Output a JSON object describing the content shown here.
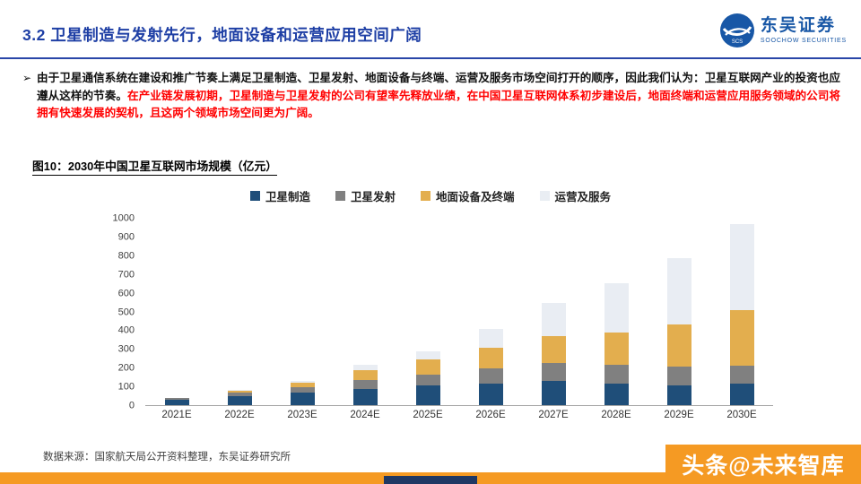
{
  "header": {
    "section_title": "3.2 卫星制造与发射先行，地面设备和运营应用空间广阔",
    "logo": {
      "name_cn": "东吴证券",
      "name_en": "SOOCHOW SECURITIES"
    }
  },
  "body": {
    "bullet": "➢",
    "text_black": "由于卫星通信系统在建设和推广节奏上满足卫星制造、卫星发射、地面设备与终端、运营及服务市场空间打开的顺序，因此我们认为：卫星互联网产业的投资也应遵从这样的节奏。",
    "text_red": "在产业链发展初期，卫星制造与卫星发射的公司有望率先释放业绩，在中国卫星互联网体系初步建设后，地面终端和运营应用服务领域的公司将拥有快速发展的契机，且这两个领域市场空间更为广阔。"
  },
  "figure": {
    "title": "图10：2030年中国卫星互联网市场规模（亿元）",
    "source": "数据来源：国家航天局公开资料整理，东吴证券研究所"
  },
  "watermark": "头条@未来智库",
  "colors": {
    "brand_blue": "#1E3FA5",
    "logo_blue": "#1857A6",
    "highlight_red": "#FF0000",
    "bottom_orange": "#F59A23",
    "bottom_navy": "#1F3864"
  },
  "chart_data": {
    "type": "bar",
    "stacked": true,
    "title": "2030年中国卫星互联网市场规模（亿元）",
    "xlabel": "",
    "ylabel": "",
    "categories": [
      "2021E",
      "2022E",
      "2023E",
      "2024E",
      "2025E",
      "2026E",
      "2027E",
      "2028E",
      "2029E",
      "2030E"
    ],
    "series": [
      {
        "name": "卫星制造",
        "color": "#1F4E79",
        "values": [
          30,
          48,
          65,
          85,
          105,
          115,
          130,
          115,
          105,
          115
        ]
      },
      {
        "name": "卫星发射",
        "color": "#808080",
        "values": [
          8,
          20,
          30,
          50,
          60,
          80,
          95,
          100,
          100,
          95
        ]
      },
      {
        "name": "地面设备及终端",
        "color": "#E3AE4E",
        "values": [
          2,
          8,
          25,
          55,
          80,
          115,
          145,
          175,
          230,
          300
        ]
      },
      {
        "name": "运营及服务",
        "color": "#E9EDF3",
        "values": [
          0,
          4,
          10,
          25,
          45,
          100,
          180,
          265,
          355,
          460
        ]
      }
    ],
    "totals": [
      40,
      80,
      130,
      215,
      290,
      410,
      550,
      655,
      790,
      970
    ],
    "ylim": [
      0,
      1000
    ],
    "y_ticks": [
      0,
      100,
      200,
      300,
      400,
      500,
      600,
      700,
      800,
      900,
      1000
    ],
    "legend_position": "top",
    "grid": false
  }
}
